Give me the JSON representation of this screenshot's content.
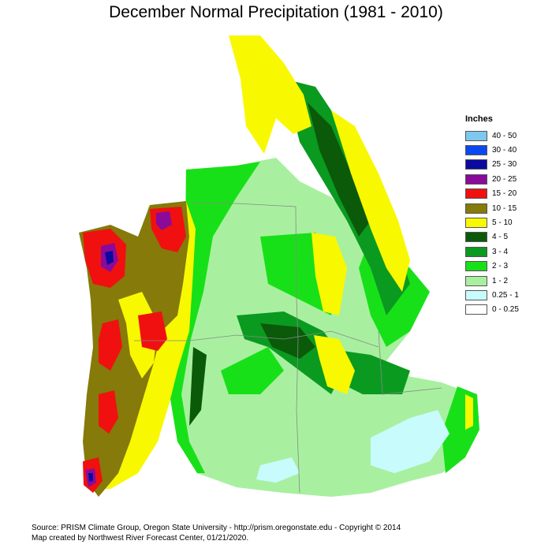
{
  "title": "December Normal Precipitation (1981 - 2010)",
  "legend": {
    "title": "Inches",
    "items": [
      {
        "label": "40 - 50",
        "color": "#7ec8f0"
      },
      {
        "label": "30 - 40",
        "color": "#0a48f0"
      },
      {
        "label": "25 - 30",
        "color": "#0a0aa0"
      },
      {
        "label": "20 - 25",
        "color": "#8a0a9a"
      },
      {
        "label": "15 - 20",
        "color": "#f01010"
      },
      {
        "label": "10 - 15",
        "color": "#857a0a"
      },
      {
        "label": "5 - 10",
        "color": "#f8f800"
      },
      {
        "label": "4 - 5",
        "color": "#0a5a0a"
      },
      {
        "label": "3 - 4",
        "color": "#0a9a20"
      },
      {
        "label": "2 - 3",
        "color": "#18e018"
      },
      {
        "label": "1 - 2",
        "color": "#a8f0a0"
      },
      {
        "label": "0.25 - 1",
        "color": "#c8fcfc"
      },
      {
        "label": "0 - 0.25",
        "color": "#ffffff"
      }
    ]
  },
  "footer": {
    "line1": "Source: PRISM Climate Group, Oregon State University - http://prism.oregonstate.edu - Copyright © 2014",
    "line2": "Map created by Northwest River Forecast Center, 01/21/2020."
  }
}
